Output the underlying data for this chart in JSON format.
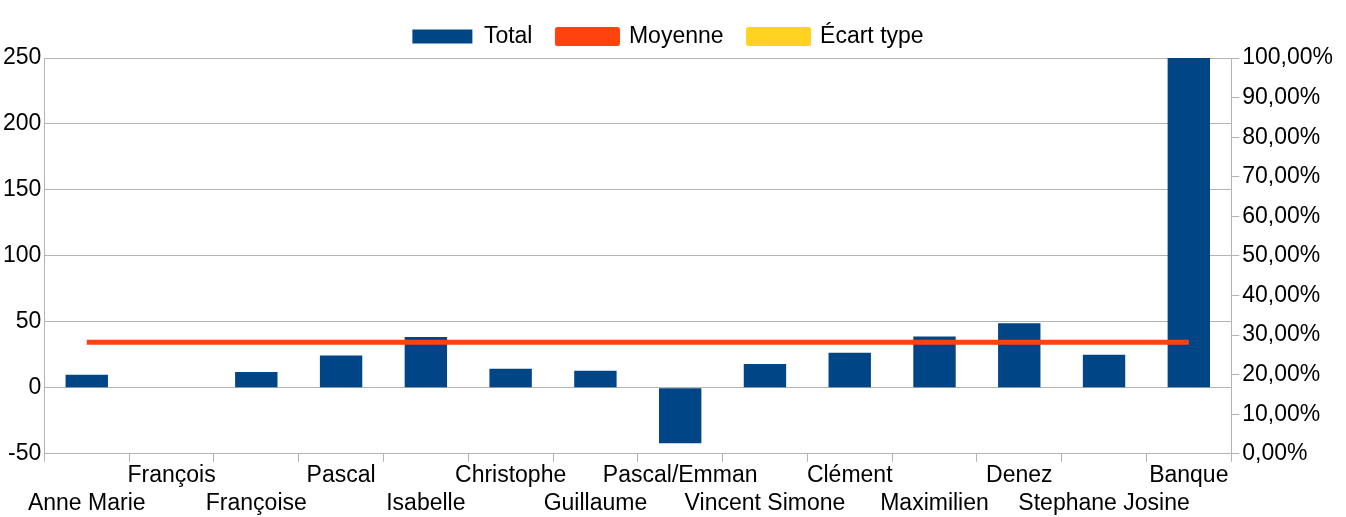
{
  "chart_data": {
    "type": "bar",
    "categories": [
      "Anne Marie",
      "François",
      "Françoise",
      "Pascal",
      "Isabelle",
      "Christophe",
      "Guillaume",
      "Pascal/Emman",
      "Vincent Simone",
      "Clément",
      "Maximilien",
      "Denez",
      "Stephane Josine",
      "Banque"
    ],
    "series": [
      {
        "name": "Total",
        "color": "#004586",
        "values": [
          10,
          0,
          12,
          24.5,
          38.5,
          14.5,
          13,
          -42,
          18,
          26.5,
          39,
          49,
          25,
          250
        ]
      },
      {
        "name": "Moyenne",
        "type": "line",
        "color": "#ff420e",
        "values": [
          34.5,
          34.5,
          34.5,
          34.5,
          34.5,
          34.5,
          34.5,
          34.5,
          34.5,
          34.5,
          34.5,
          34.5,
          34.5,
          34.5
        ]
      },
      {
        "name": "Écart type",
        "type": "line",
        "color": "#ffd320",
        "values": [
          null,
          null,
          null,
          null,
          null,
          null,
          null,
          null,
          null,
          null,
          null,
          null,
          null,
          null
        ]
      }
    ],
    "ylim": [
      -50,
      250
    ],
    "yticks": [
      -50,
      0,
      50,
      100,
      150,
      200,
      250
    ],
    "y2lim": [
      0,
      100
    ],
    "y2ticks": [
      {
        "value": 0,
        "label": "0,00%"
      },
      {
        "value": 10,
        "label": "10,00%"
      },
      {
        "value": 20,
        "label": "20,00%"
      },
      {
        "value": 30,
        "label": "30,00%"
      },
      {
        "value": 40,
        "label": "40,00%"
      },
      {
        "value": 50,
        "label": "50,00%"
      },
      {
        "value": 60,
        "label": "60,00%"
      },
      {
        "value": 70,
        "label": "70,00%"
      },
      {
        "value": 80,
        "label": "80,00%"
      },
      {
        "value": 90,
        "label": "90,00%"
      },
      {
        "value": 100,
        "label": "100,00%"
      }
    ],
    "grid": "y",
    "legend": "top",
    "marker": "none"
  }
}
